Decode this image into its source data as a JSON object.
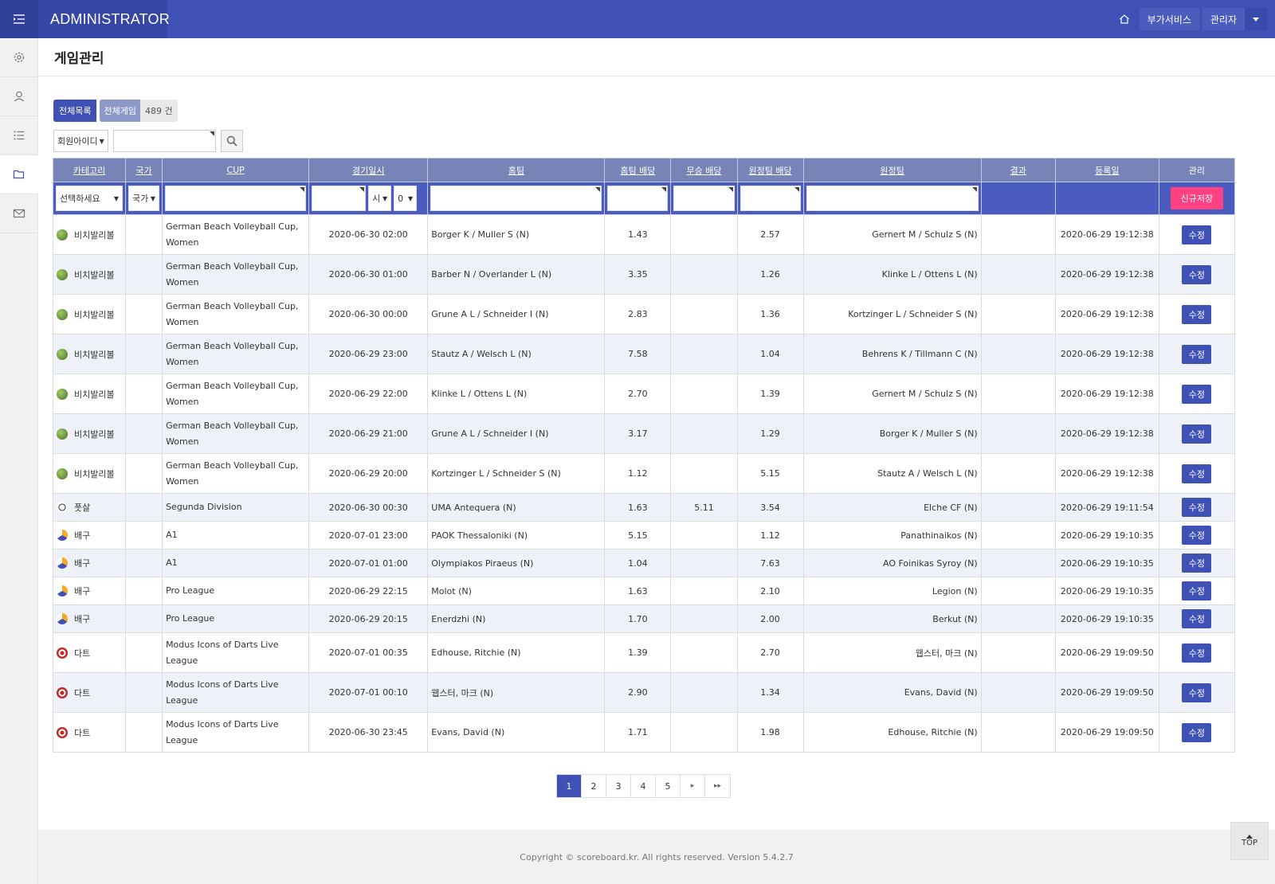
{
  "app": {
    "brand": "ADMINISTRATOR"
  },
  "topbar": {
    "service_label": "부가서비스",
    "user_label": "관리자"
  },
  "sidebar": {
    "items": [
      "settings-icon",
      "user-icon",
      "list-icon",
      "folder-icon",
      "mail-icon"
    ]
  },
  "page": {
    "title": "게임관리"
  },
  "tabs": {
    "all_list": "전체목록",
    "all_game": "전체게임",
    "count": "489 건"
  },
  "search": {
    "field_select": "회원아이디"
  },
  "table": {
    "headers": [
      "카테고리",
      "국가",
      "CUP",
      "경기일시",
      "홈팀",
      "홈팀 배당",
      "무승 배당",
      "원정팀 배당",
      "원정팀",
      "결과",
      "등록일",
      "관리"
    ],
    "filter": {
      "category_select": "선택하세요",
      "country_select": "국가",
      "hour_select": "시",
      "minute_select": "0",
      "new_button": "신규저장"
    },
    "edit_label": "수정",
    "rows": [
      {
        "category": "비치발리볼",
        "cup": "German Beach Volleyball Cup, Women",
        "date": "2020-06-30 02:00",
        "home": "Borger K / Muller S (N)",
        "home_odds": "1.43",
        "draw_odds": "",
        "away_odds": "2.57",
        "away": "Gernert M / Schulz S (N)",
        "result": "",
        "registered": "2020-06-29 19:12:38"
      },
      {
        "category": "비치발리볼",
        "cup": "German Beach Volleyball Cup, Women",
        "date": "2020-06-30 01:00",
        "home": "Barber N / Overlander L (N)",
        "home_odds": "3.35",
        "draw_odds": "",
        "away_odds": "1.26",
        "away": "Klinke L / Ottens L (N)",
        "result": "",
        "registered": "2020-06-29 19:12:38"
      },
      {
        "category": "비치발리볼",
        "cup": "German Beach Volleyball Cup, Women",
        "date": "2020-06-30 00:00",
        "home": "Grune A L / Schneider I (N)",
        "home_odds": "2.83",
        "draw_odds": "",
        "away_odds": "1.36",
        "away": "Kortzinger L / Schneider S (N)",
        "result": "",
        "registered": "2020-06-29 19:12:38"
      },
      {
        "category": "비치발리볼",
        "cup": "German Beach Volleyball Cup, Women",
        "date": "2020-06-29 23:00",
        "home": "Stautz A / Welsch L (N)",
        "home_odds": "7.58",
        "draw_odds": "",
        "away_odds": "1.04",
        "away": "Behrens K / Tillmann C (N)",
        "result": "",
        "registered": "2020-06-29 19:12:38"
      },
      {
        "category": "비치발리볼",
        "cup": "German Beach Volleyball Cup, Women",
        "date": "2020-06-29 22:00",
        "home": "Klinke L / Ottens L (N)",
        "home_odds": "2.70",
        "draw_odds": "",
        "away_odds": "1.39",
        "away": "Gernert M / Schulz S (N)",
        "result": "",
        "registered": "2020-06-29 19:12:38"
      },
      {
        "category": "비치발리볼",
        "cup": "German Beach Volleyball Cup, Women",
        "date": "2020-06-29 21:00",
        "home": "Grune A L / Schneider I (N)",
        "home_odds": "3.17",
        "draw_odds": "",
        "away_odds": "1.29",
        "away": "Borger K / Muller S (N)",
        "result": "",
        "registered": "2020-06-29 19:12:38"
      },
      {
        "category": "비치발리볼",
        "cup": "German Beach Volleyball Cup, Women",
        "date": "2020-06-29 20:00",
        "home": "Kortzinger L / Schneider S (N)",
        "home_odds": "1.12",
        "draw_odds": "",
        "away_odds": "5.15",
        "away": "Stautz A / Welsch L (N)",
        "result": "",
        "registered": "2020-06-29 19:12:38"
      },
      {
        "category": "풋살",
        "cup": "Segunda Division",
        "date": "2020-06-30 00:30",
        "home": "UMA Antequera (N)",
        "home_odds": "1.63",
        "draw_odds": "5.11",
        "away_odds": "3.54",
        "away": "Elche CF (N)",
        "result": "",
        "registered": "2020-06-29 19:11:54"
      },
      {
        "category": "배구",
        "cup": "A1",
        "date": "2020-07-01 23:00",
        "home": "PAOK Thessaloniki (N)",
        "home_odds": "5.15",
        "draw_odds": "",
        "away_odds": "1.12",
        "away": "Panathinaikos (N)",
        "result": "",
        "registered": "2020-06-29 19:10:35"
      },
      {
        "category": "배구",
        "cup": "A1",
        "date": "2020-07-01 01:00",
        "home": "Olympiakos Piraeus (N)",
        "home_odds": "1.04",
        "draw_odds": "",
        "away_odds": "7.63",
        "away": "AO Foinikas Syroy (N)",
        "result": "",
        "registered": "2020-06-29 19:10:35"
      },
      {
        "category": "배구",
        "cup": "Pro League",
        "date": "2020-06-29 22:15",
        "home": "Molot (N)",
        "home_odds": "1.63",
        "draw_odds": "",
        "away_odds": "2.10",
        "away": "Legion (N)",
        "result": "",
        "registered": "2020-06-29 19:10:35"
      },
      {
        "category": "배구",
        "cup": "Pro League",
        "date": "2020-06-29 20:15",
        "home": "Enerdzhi (N)",
        "home_odds": "1.70",
        "draw_odds": "",
        "away_odds": "2.00",
        "away": "Berkut (N)",
        "result": "",
        "registered": "2020-06-29 19:10:35"
      },
      {
        "category": "다트",
        "cup": "Modus Icons of Darts Live League",
        "date": "2020-07-01 00:35",
        "home": "Edhouse, Ritchie (N)",
        "home_odds": "1.39",
        "draw_odds": "",
        "away_odds": "2.70",
        "away": "웹스터, 마크 (N)",
        "result": "",
        "registered": "2020-06-29 19:09:50"
      },
      {
        "category": "다트",
        "cup": "Modus Icons of Darts Live League",
        "date": "2020-07-01 00:10",
        "home": "웹스터, 마크 (N)",
        "home_odds": "2.90",
        "draw_odds": "",
        "away_odds": "1.34",
        "away": "Evans, David (N)",
        "result": "",
        "registered": "2020-06-29 19:09:50"
      },
      {
        "category": "다트",
        "cup": "Modus Icons of Darts Live League",
        "date": "2020-06-30 23:45",
        "home": "Evans, David (N)",
        "home_odds": "1.71",
        "draw_odds": "",
        "away_odds": "1.98",
        "away": "Edhouse, Ritchie (N)",
        "result": "",
        "registered": "2020-06-29 19:09:50"
      }
    ]
  },
  "pagination": {
    "pages": [
      "1",
      "2",
      "3",
      "4",
      "5"
    ],
    "current": "1",
    "next": "▸",
    "last": "▸▸"
  },
  "footer": {
    "copyright": "Copyright © scoreboard.kr. All rights reserved. Version 5.4.2.7"
  },
  "scroll_top": {
    "label": "TOP"
  },
  "colors": {
    "primary": "#3f51b5",
    "accent": "#ff4081",
    "header": "#7784b8"
  }
}
